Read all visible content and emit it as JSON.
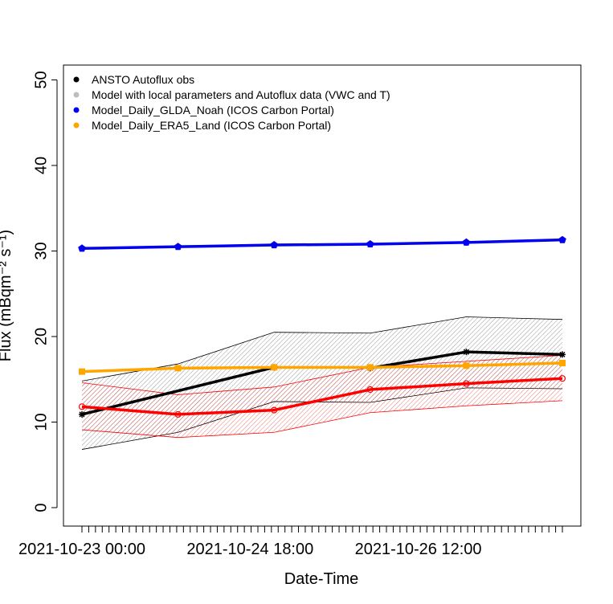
{
  "chart_data": {
    "type": "line",
    "xlabel": "Date-Time",
    "ylabel": "Flux (mBqm⁻² s⁻¹)",
    "ylim": [
      0,
      50
    ],
    "x_ticks": [
      {
        "label": "2021-10-23 00:00",
        "day": 0
      },
      {
        "label": "2021-10-24 18:00",
        "day": 1.75
      },
      {
        "label": "2021-10-26 12:00",
        "day": 3.5
      }
    ],
    "y_ticks": [
      0,
      10,
      20,
      30,
      40,
      50
    ],
    "xlim_days": [
      -0.15,
      5.2
    ],
    "minor_tick_count": 72,
    "legend_position": "top-left",
    "series": [
      {
        "name": "ANSTO Autoflux obs",
        "color": "#000000",
        "marker": "star",
        "x_days": [
          0,
          2.0,
          3.0,
          4.0,
          5.0
        ],
        "values": [
          10.9,
          16.4,
          16.3,
          18.2,
          17.9
        ],
        "segments": [
          [
            0,
            1
          ],
          [
            2,
            3,
            4
          ]
        ],
        "band": {
          "x_days": [
            0,
            1.0,
            2.0,
            3.0,
            4.0,
            5.0
          ],
          "upper": [
            14.8,
            16.8,
            20.5,
            20.4,
            22.3,
            22.0
          ],
          "lower": [
            6.8,
            8.8,
            12.4,
            12.3,
            14.0,
            13.9
          ],
          "color": "#000000"
        }
      },
      {
        "name": "Model with local parameters and Autoflux data (VWC and T)",
        "color": "#ff0000",
        "legend_color": "#bebebe",
        "marker": "circle-open",
        "x_days": [
          0,
          1.0,
          2.0,
          3.0,
          4.0,
          5.0
        ],
        "values": [
          11.8,
          10.9,
          11.4,
          13.8,
          14.5,
          15.1
        ],
        "band": {
          "x_days": [
            0,
            1.0,
            2.0,
            3.0,
            4.0,
            5.0
          ],
          "upper": [
            14.6,
            13.2,
            14.1,
            16.4,
            17.1,
            17.8
          ],
          "lower": [
            9.1,
            8.2,
            8.8,
            11.1,
            11.9,
            12.5
          ],
          "color": "#ff0000"
        }
      },
      {
        "name": "Model_Daily_GLDA_Noah (ICOS Carbon Portal)",
        "color": "#0000ee",
        "marker": "filled-pentagon",
        "x_days": [
          0,
          1.0,
          2.0,
          3.0,
          4.0,
          5.0
        ],
        "values": [
          30.3,
          30.5,
          30.7,
          30.8,
          31.0,
          31.3
        ]
      },
      {
        "name": "Model_Daily_ERA5_Land (ICOS Carbon Portal)",
        "color": "#ffa500",
        "marker": "filled-square",
        "x_days": [
          0,
          1.0,
          2.0,
          3.0,
          4.0,
          5.0
        ],
        "values": [
          15.9,
          16.3,
          16.4,
          16.4,
          16.6,
          16.9
        ]
      }
    ]
  }
}
